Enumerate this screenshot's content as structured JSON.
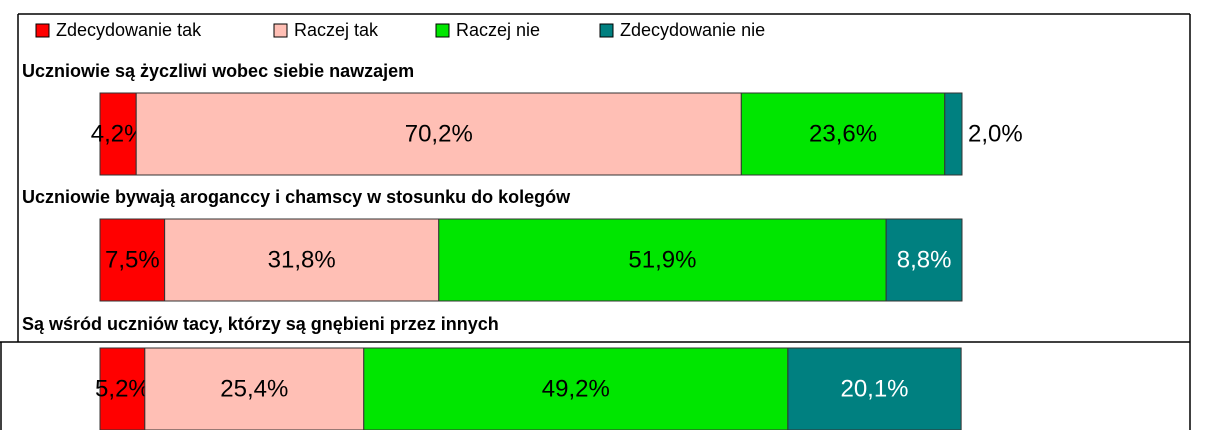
{
  "chart_data": {
    "type": "bar",
    "orientation": "horizontal",
    "stacked": true,
    "categories": [
      "Uczniowie są życzliwi wobec siebie nawzajem",
      "Uczniowie bywają aroganccy i chamscy w stosunku do kolegów",
      "Są wśród uczniów tacy, którzy są gnębieni przez innych"
    ],
    "xlim": [
      0,
      100
    ],
    "series": [
      {
        "name": "Zdecydowanie tak",
        "color": "#ff0000",
        "values": [
          4.2,
          7.5,
          5.2
        ],
        "value_labels": [
          "4,2%",
          "7,5%",
          "5,2%"
        ]
      },
      {
        "name": "Raczej tak",
        "color": "#ffbfb5",
        "values": [
          70.2,
          31.8,
          25.4
        ],
        "value_labels": [
          "70,2%",
          "31,8%",
          "25,4%"
        ]
      },
      {
        "name": "Raczej nie",
        "color": "#00e600",
        "values": [
          23.6,
          51.9,
          49.2
        ],
        "value_labels": [
          "23,6%",
          "51,9%",
          "49,2%"
        ]
      },
      {
        "name": "Zdecydowanie nie",
        "color": "#008080",
        "values": [
          2.0,
          8.8,
          20.1
        ],
        "value_labels": [
          "2,0%",
          "8,8%",
          "20,1%"
        ]
      }
    ]
  }
}
